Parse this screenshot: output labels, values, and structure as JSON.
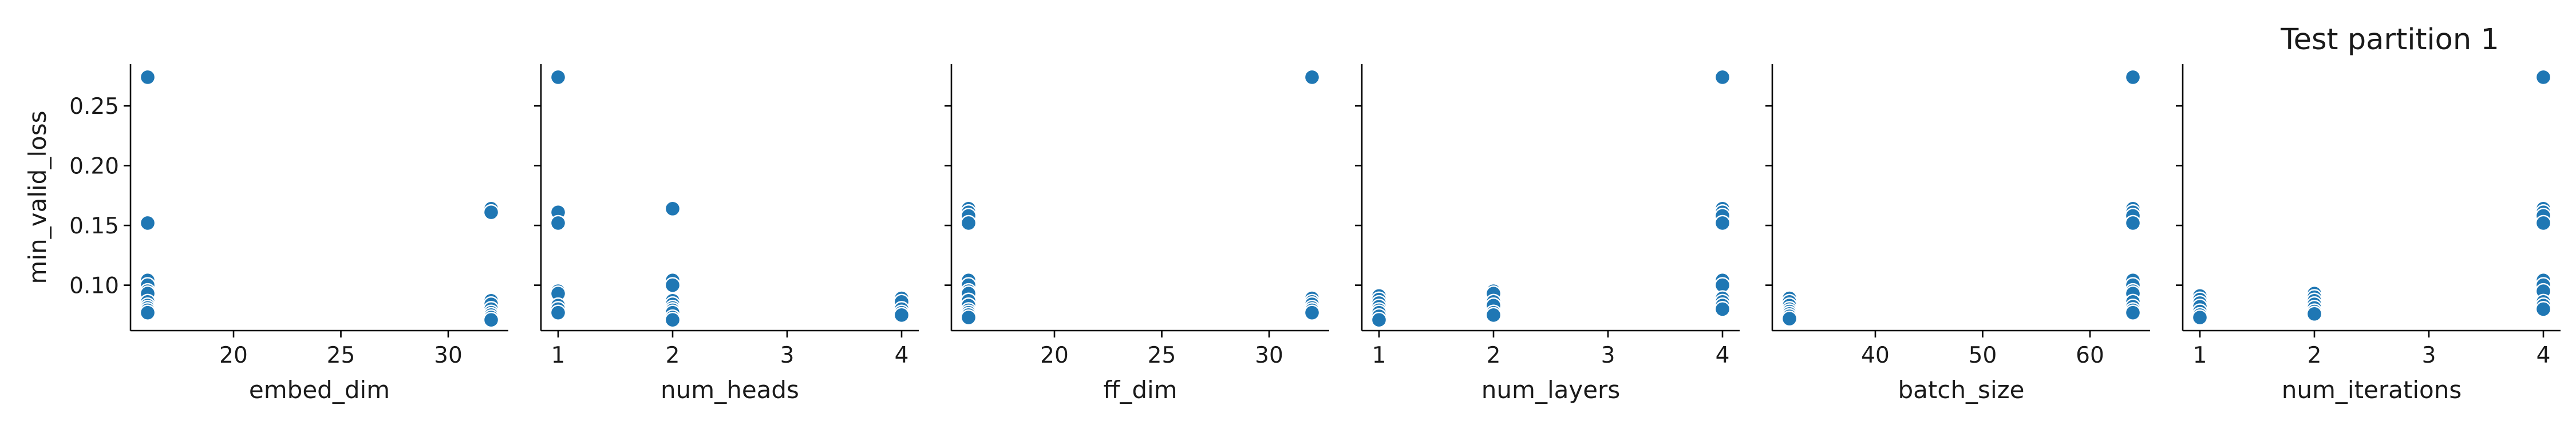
{
  "title": "Test partition 1",
  "chart_data": {
    "type": "scatter",
    "title": "Test partition 1",
    "shared_ylabel": "min_valid_loss",
    "shared_ylim": [
      0.062,
      0.285
    ],
    "y_ticks": [
      0.1,
      0.15,
      0.2,
      0.25
    ],
    "y_tick_labels": [
      "0.10",
      "0.15",
      "0.20",
      "0.25"
    ],
    "marker_color": "#1f77b4",
    "grid": false,
    "panels": [
      {
        "xlabel": "embed_dim",
        "xlim": [
          15.2,
          32.8
        ],
        "x_ticks": [
          20,
          25,
          30
        ],
        "x_tick_labels": [
          "20",
          "25",
          "30"
        ],
        "points": [
          [
            16,
            0.274
          ],
          [
            16,
            0.152
          ],
          [
            16,
            0.104
          ],
          [
            16,
            0.1
          ],
          [
            16,
            0.095
          ],
          [
            16,
            0.093
          ],
          [
            16,
            0.086
          ],
          [
            16,
            0.083
          ],
          [
            16,
            0.081
          ],
          [
            16,
            0.079
          ],
          [
            16,
            0.077
          ],
          [
            32,
            0.164
          ],
          [
            32,
            0.161
          ],
          [
            32,
            0.087
          ],
          [
            32,
            0.084
          ],
          [
            32,
            0.08
          ],
          [
            32,
            0.077
          ],
          [
            32,
            0.075
          ],
          [
            32,
            0.073
          ],
          [
            32,
            0.071
          ]
        ]
      },
      {
        "xlabel": "num_heads",
        "xlim": [
          0.85,
          4.15
        ],
        "x_ticks": [
          1,
          2,
          3,
          4
        ],
        "x_tick_labels": [
          "1",
          "2",
          "3",
          "4"
        ],
        "points": [
          [
            1,
            0.274
          ],
          [
            1,
            0.161
          ],
          [
            1,
            0.152
          ],
          [
            1,
            0.095
          ],
          [
            1,
            0.093
          ],
          [
            1,
            0.083
          ],
          [
            1,
            0.08
          ],
          [
            1,
            0.077
          ],
          [
            2,
            0.164
          ],
          [
            2,
            0.104
          ],
          [
            2,
            0.1
          ],
          [
            2,
            0.087
          ],
          [
            2,
            0.084
          ],
          [
            2,
            0.081
          ],
          [
            2,
            0.079
          ],
          [
            2,
            0.077
          ],
          [
            2,
            0.073
          ],
          [
            2,
            0.071
          ],
          [
            4,
            0.089
          ],
          [
            4,
            0.086
          ],
          [
            4,
            0.08
          ],
          [
            4,
            0.077
          ],
          [
            4,
            0.075
          ]
        ]
      },
      {
        "xlabel": "ff_dim",
        "xlim": [
          15.2,
          32.8
        ],
        "x_ticks": [
          20,
          25,
          30
        ],
        "x_tick_labels": [
          "20",
          "25",
          "30"
        ],
        "points": [
          [
            16,
            0.164
          ],
          [
            16,
            0.161
          ],
          [
            16,
            0.158
          ],
          [
            16,
            0.152
          ],
          [
            16,
            0.104
          ],
          [
            16,
            0.1
          ],
          [
            16,
            0.095
          ],
          [
            16,
            0.093
          ],
          [
            16,
            0.087
          ],
          [
            16,
            0.083
          ],
          [
            16,
            0.079
          ],
          [
            16,
            0.077
          ],
          [
            16,
            0.075
          ],
          [
            16,
            0.073
          ],
          [
            32,
            0.274
          ],
          [
            32,
            0.089
          ],
          [
            32,
            0.086
          ],
          [
            32,
            0.084
          ],
          [
            32,
            0.081
          ],
          [
            32,
            0.079
          ],
          [
            32,
            0.077
          ]
        ]
      },
      {
        "xlabel": "num_layers",
        "xlim": [
          0.85,
          4.15
        ],
        "x_ticks": [
          1,
          2,
          3,
          4
        ],
        "x_tick_labels": [
          "1",
          "2",
          "3",
          "4"
        ],
        "points": [
          [
            1,
            0.091
          ],
          [
            1,
            0.088
          ],
          [
            1,
            0.085
          ],
          [
            1,
            0.082
          ],
          [
            1,
            0.079
          ],
          [
            1,
            0.077
          ],
          [
            1,
            0.074
          ],
          [
            1,
            0.071
          ],
          [
            2,
            0.095
          ],
          [
            2,
            0.093
          ],
          [
            2,
            0.086
          ],
          [
            2,
            0.083
          ],
          [
            2,
            0.077
          ],
          [
            2,
            0.075
          ],
          [
            4,
            0.274
          ],
          [
            4,
            0.164
          ],
          [
            4,
            0.161
          ],
          [
            4,
            0.158
          ],
          [
            4,
            0.152
          ],
          [
            4,
            0.104
          ],
          [
            4,
            0.1
          ],
          [
            4,
            0.089
          ],
          [
            4,
            0.086
          ],
          [
            4,
            0.083
          ],
          [
            4,
            0.08
          ]
        ]
      },
      {
        "xlabel": "batch_size",
        "xlim": [
          30.4,
          65.6
        ],
        "x_ticks": [
          40,
          50,
          60
        ],
        "x_tick_labels": [
          "40",
          "50",
          "60"
        ],
        "points": [
          [
            32,
            0.089
          ],
          [
            32,
            0.086
          ],
          [
            32,
            0.083
          ],
          [
            32,
            0.08
          ],
          [
            32,
            0.078
          ],
          [
            32,
            0.076
          ],
          [
            32,
            0.074
          ],
          [
            32,
            0.072
          ],
          [
            64,
            0.274
          ],
          [
            64,
            0.164
          ],
          [
            64,
            0.161
          ],
          [
            64,
            0.158
          ],
          [
            64,
            0.152
          ],
          [
            64,
            0.104
          ],
          [
            64,
            0.1
          ],
          [
            64,
            0.095
          ],
          [
            64,
            0.093
          ],
          [
            64,
            0.086
          ],
          [
            64,
            0.082
          ],
          [
            64,
            0.079
          ],
          [
            64,
            0.077
          ]
        ]
      },
      {
        "xlabel": "num_iterations",
        "xlim": [
          0.85,
          4.15
        ],
        "x_ticks": [
          1,
          2,
          3,
          4
        ],
        "x_tick_labels": [
          "1",
          "2",
          "3",
          "4"
        ],
        "points": [
          [
            1,
            0.091
          ],
          [
            1,
            0.088
          ],
          [
            1,
            0.085
          ],
          [
            1,
            0.082
          ],
          [
            1,
            0.078
          ],
          [
            1,
            0.075
          ],
          [
            1,
            0.073
          ],
          [
            2,
            0.093
          ],
          [
            2,
            0.09
          ],
          [
            2,
            0.087
          ],
          [
            2,
            0.084
          ],
          [
            2,
            0.081
          ],
          [
            2,
            0.078
          ],
          [
            2,
            0.076
          ],
          [
            4,
            0.274
          ],
          [
            4,
            0.164
          ],
          [
            4,
            0.161
          ],
          [
            4,
            0.158
          ],
          [
            4,
            0.152
          ],
          [
            4,
            0.104
          ],
          [
            4,
            0.1
          ],
          [
            4,
            0.095
          ],
          [
            4,
            0.086
          ],
          [
            4,
            0.083
          ],
          [
            4,
            0.08
          ]
        ]
      }
    ]
  }
}
